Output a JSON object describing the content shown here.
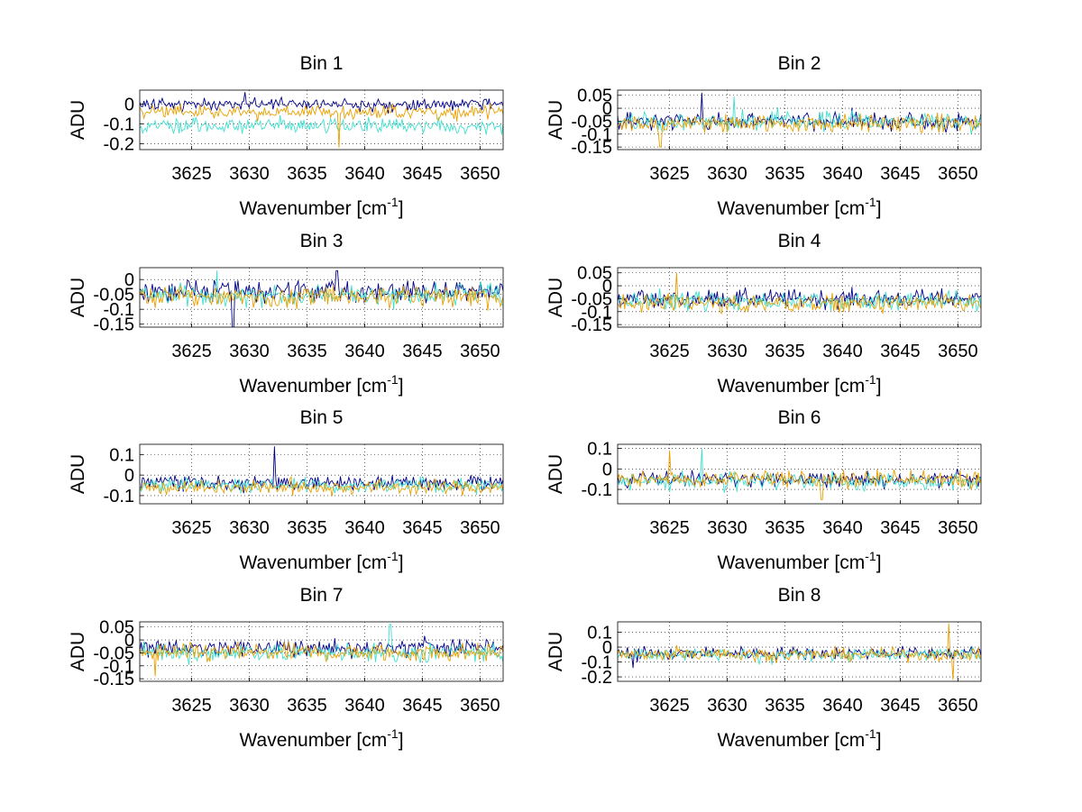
{
  "figure": {
    "colors": {
      "trace_a": "#00008b",
      "trace_b": "#40e0d0",
      "trace_c": "#e8a000",
      "grid": "#000000",
      "axis": "#000000"
    }
  },
  "chart_data": [
    {
      "type": "line",
      "title": "Bin 1",
      "xlabel": "Wavenumber [cm",
      "xlabel_sup": "-1",
      "xlabel_end": "]",
      "ylabel": "ADU",
      "xlim": [
        3620.5,
        3652
      ],
      "ylim": [
        -0.23,
        0.07
      ],
      "xticks": [
        3625,
        3630,
        3635,
        3640,
        3645,
        3650
      ],
      "xtick_labels": [
        "3625",
        "3630",
        "3635",
        "3640",
        "3645",
        "3650"
      ],
      "yticks": [
        0,
        -0.1,
        -0.2
      ],
      "ytick_labels": [
        "0",
        "-0.1",
        "-0.2"
      ],
      "series": [
        {
          "name": "trace_a",
          "color": "#00008b",
          "mean": 0.0,
          "noise": 0.022,
          "seed": 11,
          "spikes": [
            [
              3629.6,
              0.06
            ]
          ]
        },
        {
          "name": "trace_b",
          "color": "#40e0d0",
          "mean": -0.11,
          "noise": 0.025,
          "seed": 12,
          "spikes": []
        },
        {
          "name": "trace_c",
          "color": "#e8a000",
          "mean": -0.04,
          "noise": 0.025,
          "seed": 13,
          "spikes": [
            [
              3637.8,
              -0.22
            ]
          ]
        }
      ]
    },
    {
      "type": "line",
      "title": "Bin 2",
      "xlabel": "Wavenumber [cm",
      "xlabel_sup": "-1",
      "xlabel_end": "]",
      "ylabel": "ADU",
      "xlim": [
        3620.5,
        3652
      ],
      "ylim": [
        -0.16,
        0.07
      ],
      "xticks": [
        3625,
        3630,
        3635,
        3640,
        3645,
        3650
      ],
      "xtick_labels": [
        "3625",
        "3630",
        "3635",
        "3640",
        "3645",
        "3650"
      ],
      "yticks": [
        0.05,
        0,
        -0.05,
        -0.1,
        -0.15
      ],
      "ytick_labels": [
        "0.05",
        "0",
        "-0.05",
        "-0.1",
        "-0.15"
      ],
      "series": [
        {
          "name": "trace_a",
          "color": "#00008b",
          "mean": -0.05,
          "noise": 0.025,
          "seed": 21,
          "spikes": [
            [
              3627.8,
              0.06
            ]
          ]
        },
        {
          "name": "trace_b",
          "color": "#40e0d0",
          "mean": -0.05,
          "noise": 0.025,
          "seed": 22,
          "spikes": [
            [
              3630.6,
              0.045
            ]
          ]
        },
        {
          "name": "trace_c",
          "color": "#e8a000",
          "mean": -0.06,
          "noise": 0.025,
          "seed": 23,
          "spikes": [
            [
              3624.2,
              -0.15
            ]
          ]
        }
      ]
    },
    {
      "type": "line",
      "title": "Bin 3",
      "xlabel": "Wavenumber [cm",
      "xlabel_sup": "-1",
      "xlabel_end": "]",
      "ylabel": "ADU",
      "xlim": [
        3620.5,
        3652
      ],
      "ylim": [
        -0.16,
        0.04
      ],
      "xticks": [
        3625,
        3630,
        3635,
        3640,
        3645,
        3650
      ],
      "xtick_labels": [
        "3625",
        "3630",
        "3635",
        "3640",
        "3645",
        "3650"
      ],
      "yticks": [
        0,
        -0.05,
        -0.1,
        -0.15
      ],
      "ytick_labels": [
        "0",
        "-0.05",
        "-0.1",
        "-0.15"
      ],
      "series": [
        {
          "name": "trace_a",
          "color": "#00008b",
          "mean": -0.04,
          "noise": 0.025,
          "seed": 31,
          "spikes": [
            [
              3637.6,
              0.03
            ],
            [
              3628.6,
              -0.16
            ]
          ]
        },
        {
          "name": "trace_b",
          "color": "#40e0d0",
          "mean": -0.05,
          "noise": 0.025,
          "seed": 32,
          "spikes": [
            [
              3627.2,
              0.03
            ]
          ]
        },
        {
          "name": "trace_c",
          "color": "#e8a000",
          "mean": -0.06,
          "noise": 0.025,
          "seed": 33,
          "spikes": []
        }
      ]
    },
    {
      "type": "line",
      "title": "Bin 4",
      "xlabel": "Wavenumber [cm",
      "xlabel_sup": "-1",
      "xlabel_end": "]",
      "ylabel": "ADU",
      "xlim": [
        3620.5,
        3652
      ],
      "ylim": [
        -0.16,
        0.07
      ],
      "xticks": [
        3625,
        3630,
        3635,
        3640,
        3645,
        3650
      ],
      "xtick_labels": [
        "3625",
        "3630",
        "3635",
        "3640",
        "3645",
        "3650"
      ],
      "yticks": [
        0.05,
        0,
        -0.05,
        -0.1,
        -0.15
      ],
      "ytick_labels": [
        "0.05",
        "0",
        "-0.05",
        "-0.1",
        "-0.15"
      ],
      "series": [
        {
          "name": "trace_a",
          "color": "#00008b",
          "mean": -0.05,
          "noise": 0.025,
          "seed": 41,
          "spikes": []
        },
        {
          "name": "trace_b",
          "color": "#40e0d0",
          "mean": -0.06,
          "noise": 0.025,
          "seed": 42,
          "spikes": []
        },
        {
          "name": "trace_c",
          "color": "#e8a000",
          "mean": -0.07,
          "noise": 0.025,
          "seed": 43,
          "spikes": [
            [
              3625.6,
              0.05
            ]
          ]
        }
      ]
    },
    {
      "type": "line",
      "title": "Bin 5",
      "xlabel": "Wavenumber [cm",
      "xlabel_sup": "-1",
      "xlabel_end": "]",
      "ylabel": "ADU",
      "xlim": [
        3620.5,
        3652
      ],
      "ylim": [
        -0.14,
        0.15
      ],
      "xticks": [
        3625,
        3630,
        3635,
        3640,
        3645,
        3650
      ],
      "xtick_labels": [
        "3625",
        "3630",
        "3635",
        "3640",
        "3645",
        "3650"
      ],
      "yticks": [
        0.1,
        0,
        -0.1
      ],
      "ytick_labels": [
        "0.1",
        "0",
        "-0.1"
      ],
      "series": [
        {
          "name": "trace_a",
          "color": "#00008b",
          "mean": -0.04,
          "noise": 0.025,
          "seed": 51,
          "spikes": [
            [
              3632.2,
              0.14
            ]
          ]
        },
        {
          "name": "trace_b",
          "color": "#40e0d0",
          "mean": -0.05,
          "noise": 0.025,
          "seed": 52,
          "spikes": []
        },
        {
          "name": "trace_c",
          "color": "#e8a000",
          "mean": -0.06,
          "noise": 0.025,
          "seed": 53,
          "spikes": []
        }
      ]
    },
    {
      "type": "line",
      "title": "Bin 6",
      "xlabel": "Wavenumber [cm",
      "xlabel_sup": "-1",
      "xlabel_end": "]",
      "ylabel": "ADU",
      "xlim": [
        3620.5,
        3652
      ],
      "ylim": [
        -0.17,
        0.12
      ],
      "xticks": [
        3625,
        3630,
        3635,
        3640,
        3645,
        3650
      ],
      "xtick_labels": [
        "3625",
        "3630",
        "3635",
        "3640",
        "3645",
        "3650"
      ],
      "yticks": [
        0.1,
        0,
        -0.1
      ],
      "ytick_labels": [
        "0.1",
        "0",
        "-0.1"
      ],
      "series": [
        {
          "name": "trace_a",
          "color": "#00008b",
          "mean": -0.05,
          "noise": 0.028,
          "seed": 61,
          "spikes": []
        },
        {
          "name": "trace_b",
          "color": "#40e0d0",
          "mean": -0.06,
          "noise": 0.028,
          "seed": 62,
          "spikes": [
            [
              3627.8,
              0.1
            ]
          ]
        },
        {
          "name": "trace_c",
          "color": "#e8a000",
          "mean": -0.05,
          "noise": 0.028,
          "seed": 63,
          "spikes": [
            [
              3625.0,
              0.09
            ],
            [
              3638.2,
              -0.15
            ]
          ]
        }
      ]
    },
    {
      "type": "line",
      "title": "Bin 7",
      "xlabel": "Wavenumber [cm",
      "xlabel_sup": "-1",
      "xlabel_end": "]",
      "ylabel": "ADU",
      "xlim": [
        3620.5,
        3652
      ],
      "ylim": [
        -0.16,
        0.07
      ],
      "xticks": [
        3625,
        3630,
        3635,
        3640,
        3645,
        3650
      ],
      "xtick_labels": [
        "3625",
        "3630",
        "3635",
        "3640",
        "3645",
        "3650"
      ],
      "yticks": [
        0.05,
        0,
        -0.05,
        -0.1,
        -0.15
      ],
      "ytick_labels": [
        "0.05",
        "0",
        "-0.05",
        "-0.1",
        "-0.15"
      ],
      "series": [
        {
          "name": "trace_a",
          "color": "#00008b",
          "mean": -0.03,
          "noise": 0.025,
          "seed": 71,
          "spikes": []
        },
        {
          "name": "trace_b",
          "color": "#40e0d0",
          "mean": -0.05,
          "noise": 0.025,
          "seed": 72,
          "spikes": [
            [
              3642.2,
              0.06
            ]
          ]
        },
        {
          "name": "trace_c",
          "color": "#e8a000",
          "mean": -0.05,
          "noise": 0.025,
          "seed": 73,
          "spikes": [
            [
              3621.8,
              -0.14
            ]
          ]
        }
      ]
    },
    {
      "type": "line",
      "title": "Bin 8",
      "xlabel": "Wavenumber [cm",
      "xlabel_sup": "-1",
      "xlabel_end": "]",
      "ylabel": "ADU",
      "xlim": [
        3620.5,
        3652
      ],
      "ylim": [
        -0.23,
        0.17
      ],
      "xticks": [
        3625,
        3630,
        3635,
        3640,
        3645,
        3650
      ],
      "xtick_labels": [
        "3625",
        "3630",
        "3635",
        "3640",
        "3645",
        "3650"
      ],
      "yticks": [
        0.1,
        0,
        -0.1,
        -0.2
      ],
      "ytick_labels": [
        "0.1",
        "0",
        "-0.1",
        "-0.2"
      ],
      "series": [
        {
          "name": "trace_a",
          "color": "#00008b",
          "mean": -0.04,
          "noise": 0.03,
          "seed": 81,
          "spikes": [
            [
              3621.8,
              -0.14
            ]
          ]
        },
        {
          "name": "trace_b",
          "color": "#40e0d0",
          "mean": -0.05,
          "noise": 0.03,
          "seed": 82,
          "spikes": []
        },
        {
          "name": "trace_c",
          "color": "#e8a000",
          "mean": -0.05,
          "noise": 0.03,
          "seed": 83,
          "spikes": [
            [
              3649.2,
              0.16
            ],
            [
              3649.6,
              -0.22
            ]
          ]
        }
      ]
    }
  ]
}
